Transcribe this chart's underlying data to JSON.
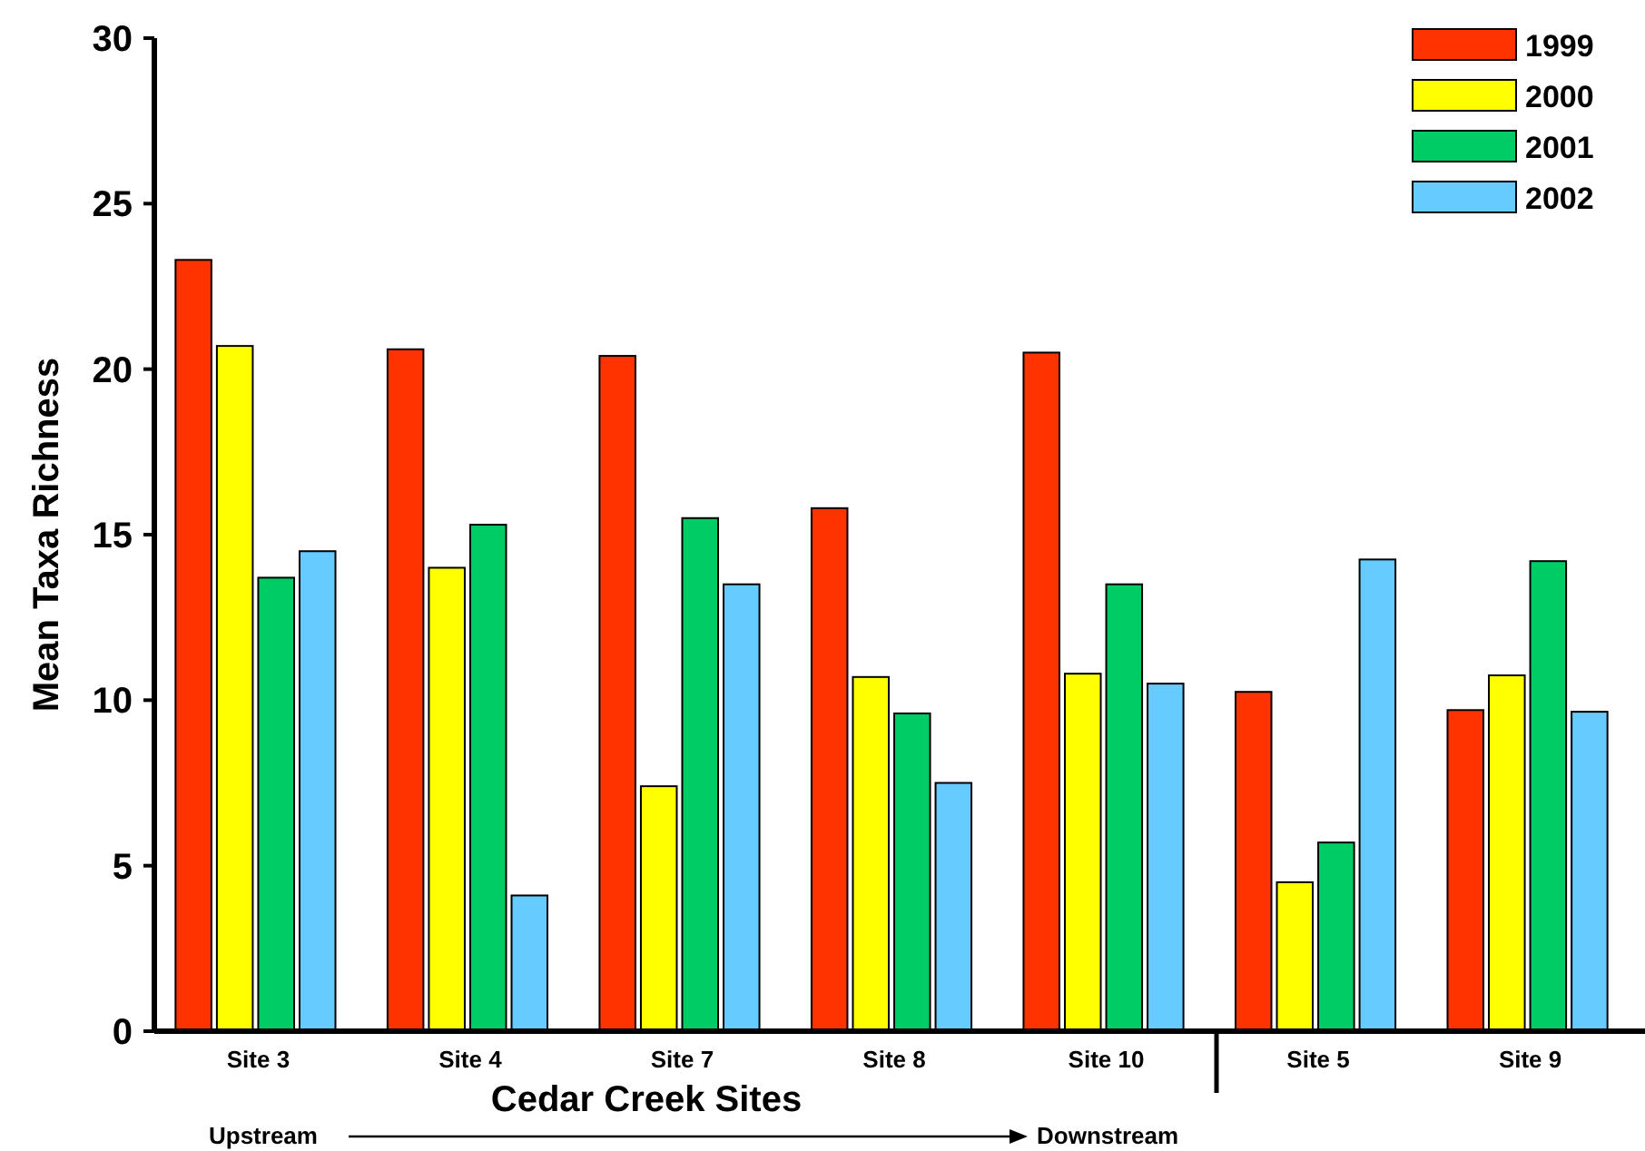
{
  "chart_data": {
    "type": "bar",
    "xlabel": "Cedar Creek Sites",
    "ylabel": "Mean Taxa Richness",
    "categories": [
      "Site 3",
      "Site 4",
      "Site 7",
      "Site 8",
      "Site 10",
      "Site 5",
      "Site 9"
    ],
    "series": [
      {
        "name": "1999",
        "color": "#ff3300",
        "values": [
          23.3,
          20.6,
          20.4,
          15.8,
          20.5,
          10.25,
          9.7
        ]
      },
      {
        "name": "2000",
        "color": "#ffff00",
        "values": [
          20.7,
          14.0,
          7.4,
          10.7,
          10.8,
          4.5,
          10.75
        ]
      },
      {
        "name": "2001",
        "color": "#00cc66",
        "values": [
          13.7,
          15.3,
          15.5,
          9.6,
          13.5,
          5.7,
          14.2
        ]
      },
      {
        "name": "2002",
        "color": "#66ccff",
        "values": [
          14.5,
          4.1,
          13.5,
          7.5,
          10.5,
          14.25,
          9.65
        ]
      }
    ],
    "ylim": [
      0,
      30
    ],
    "yticks": [
      0,
      5,
      10,
      15,
      20,
      25,
      30
    ],
    "grid": false,
    "legend": "top right",
    "annotations": [
      "Upstream",
      "Downstream"
    ]
  }
}
